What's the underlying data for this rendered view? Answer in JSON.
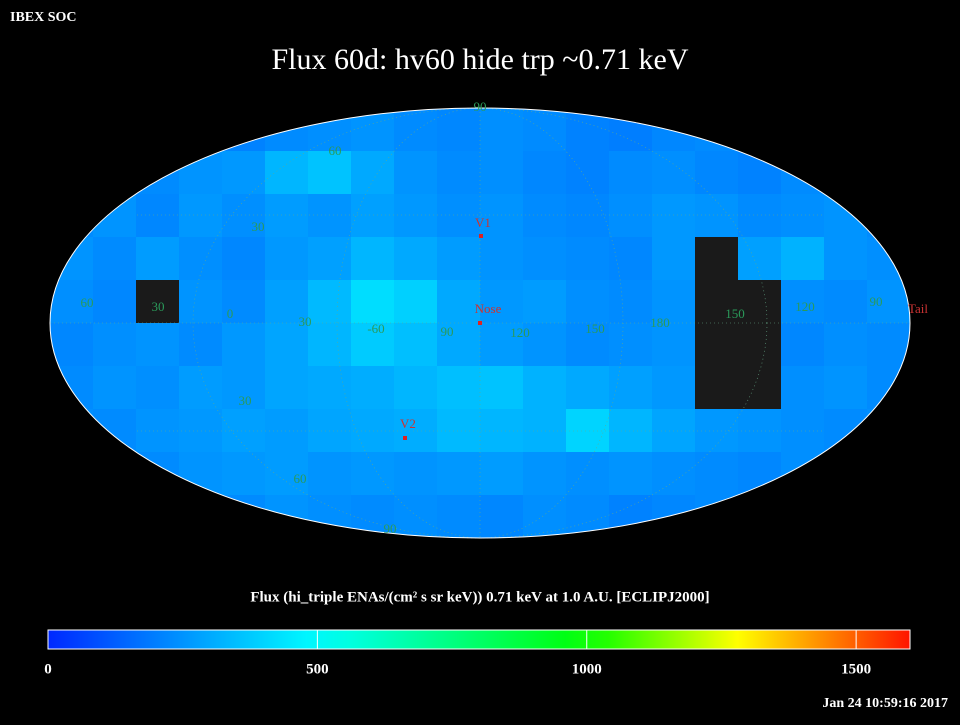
{
  "header": {
    "source": "IBEX SOC",
    "title": "Flux   60d: hv60 hide trp ~0.71 keV"
  },
  "map": {
    "flux": [
      [
        210,
        220,
        230,
        200,
        210,
        230,
        240,
        250,
        230,
        220,
        240,
        230,
        210,
        200,
        220,
        230,
        220,
        210,
        200,
        210
      ],
      [
        200,
        210,
        230,
        250,
        260,
        330,
        360,
        300,
        250,
        230,
        240,
        220,
        210,
        230,
        240,
        220,
        210,
        230,
        240,
        220
      ],
      [
        230,
        250,
        220,
        260,
        240,
        270,
        250,
        280,
        260,
        240,
        250,
        230,
        220,
        240,
        260,
        250,
        230,
        240,
        250,
        230
      ],
      [
        250,
        230,
        270,
        240,
        220,
        260,
        280,
        330,
        300,
        270,
        250,
        240,
        230,
        220,
        260,
        null,
        280,
        320,
        250,
        240
      ],
      [
        240,
        220,
        null,
        250,
        230,
        280,
        340,
        420,
        390,
        300,
        260,
        270,
        240,
        230,
        250,
        null,
        null,
        240,
        230,
        250
      ],
      [
        220,
        240,
        250,
        230,
        260,
        290,
        330,
        380,
        350,
        300,
        270,
        250,
        230,
        240,
        250,
        null,
        null,
        220,
        240,
        230
      ],
      [
        230,
        250,
        240,
        270,
        260,
        290,
        300,
        310,
        330,
        350,
        360,
        320,
        300,
        280,
        260,
        null,
        null,
        240,
        250,
        230
      ],
      [
        240,
        230,
        250,
        260,
        280,
        270,
        290,
        300,
        310,
        340,
        330,
        320,
        400,
        330,
        290,
        260,
        250,
        240,
        230,
        240
      ],
      [
        220,
        240,
        230,
        250,
        260,
        270,
        250,
        260,
        250,
        260,
        270,
        250,
        240,
        250,
        240,
        230,
        220,
        240,
        250,
        230
      ],
      [
        210,
        230,
        220,
        240,
        230,
        250,
        240,
        230,
        240,
        230,
        220,
        240,
        230,
        210,
        220,
        230,
        240,
        220,
        210,
        230
      ]
    ],
    "grid_labels": [
      "90",
      "60",
      "30",
      "60",
      "30",
      "0",
      "30",
      "-60",
      "90",
      "120",
      "150",
      "180",
      "150",
      "120",
      "90",
      "30",
      "60",
      "90"
    ],
    "markers": [
      "V1",
      "Nose",
      "Tail",
      "V2"
    ]
  },
  "colorbar": {
    "label": "Flux (hi_triple ENAs/(cm² s sr keV))  0.71 keV at 1.0 A.U. [ECLIPJ2000]",
    "lim": [
      0,
      1600
    ],
    "ticks": [
      0,
      500,
      1000,
      1500
    ]
  },
  "footer": {
    "timestamp": "Jan 24 10:59:16 2017"
  }
}
